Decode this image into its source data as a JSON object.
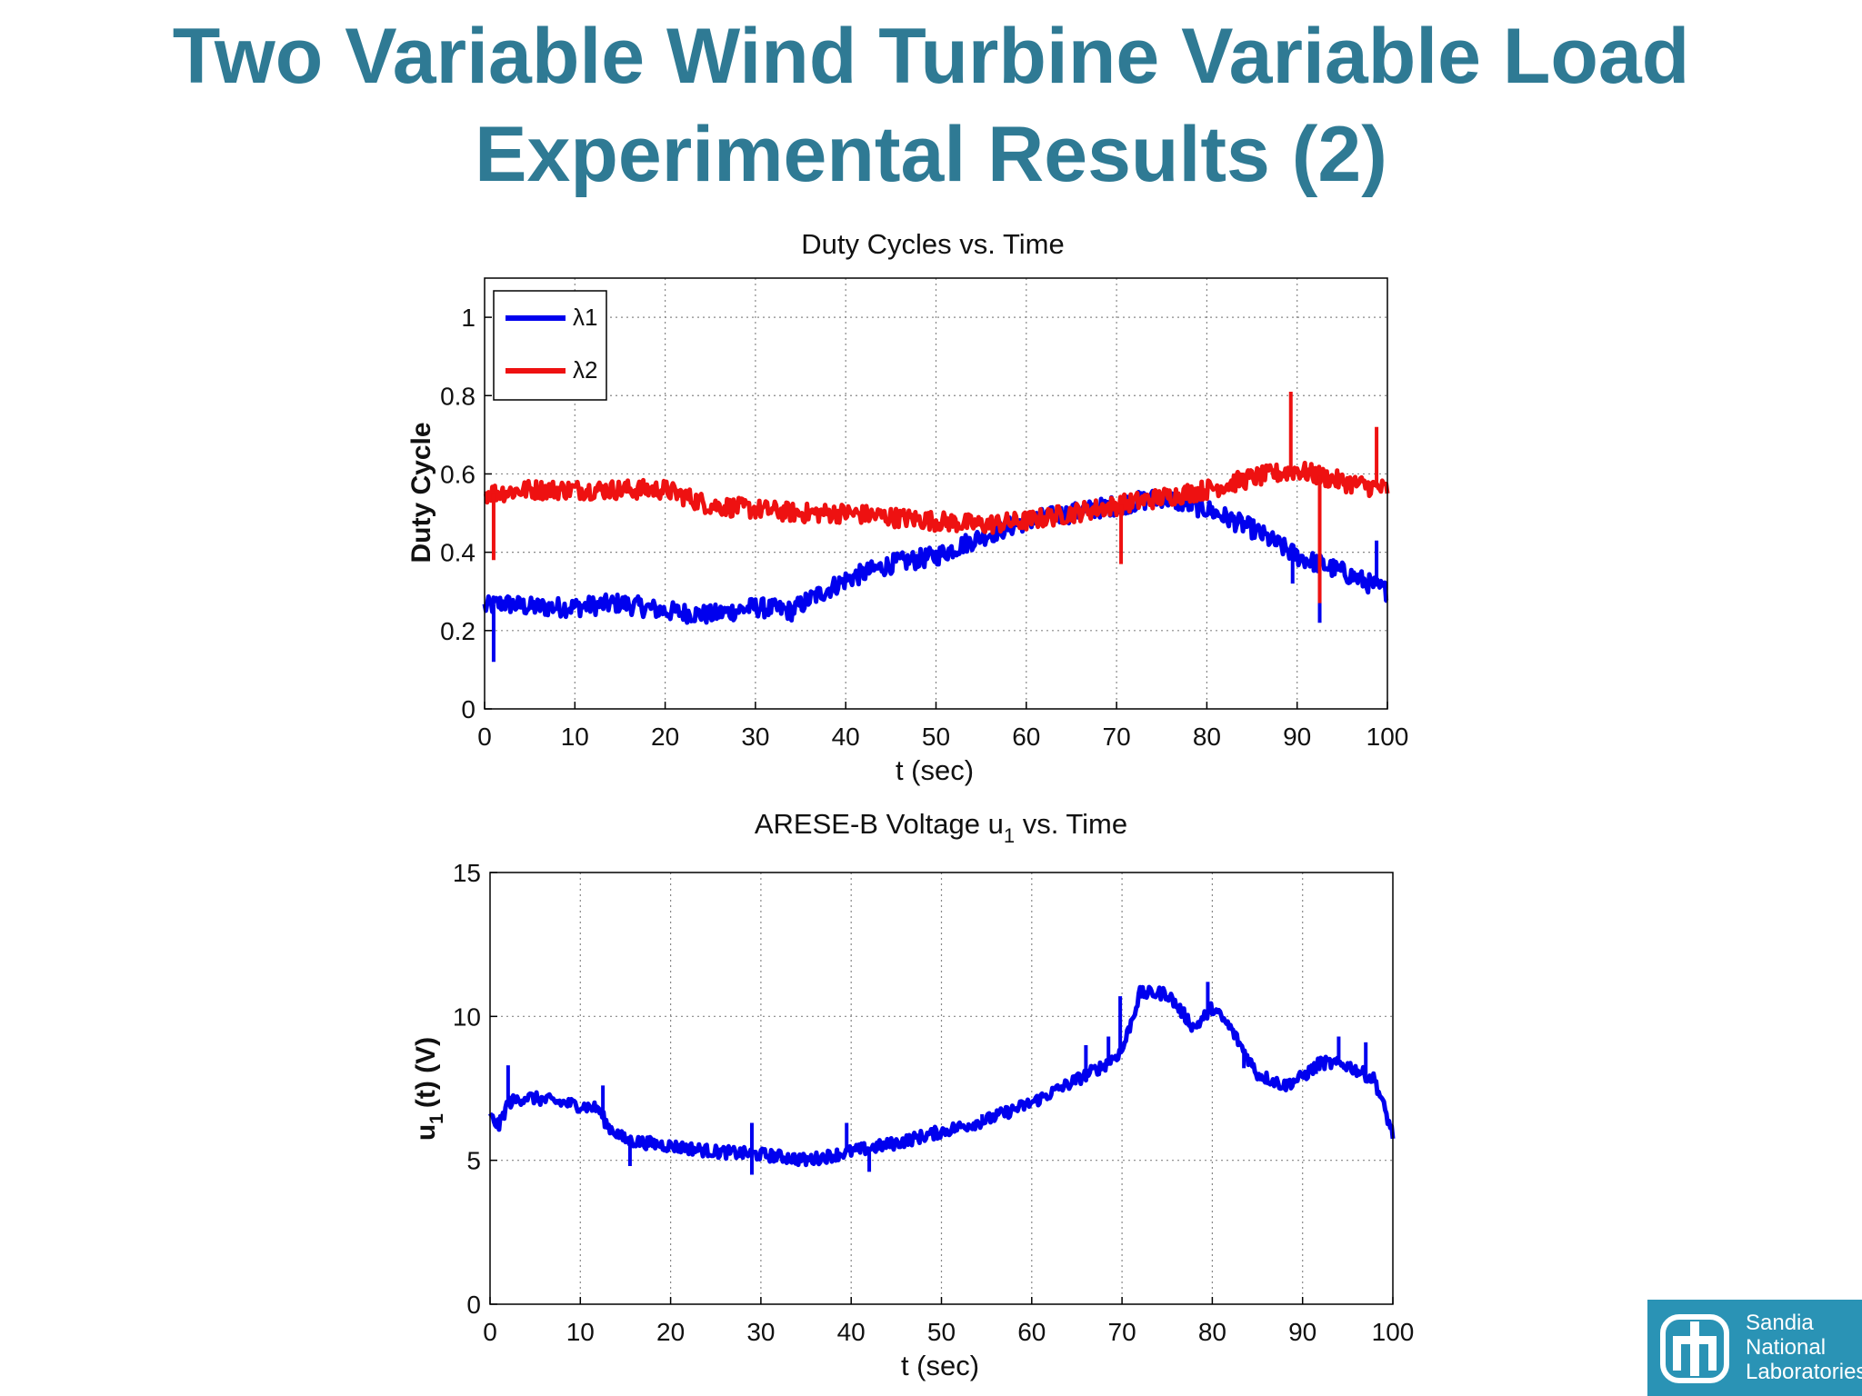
{
  "slide": {
    "title_line1": "Two Variable Wind Turbine Variable Load",
    "title_line2": "Experimental Results (2)"
  },
  "logo": {
    "line1": "Sandia",
    "line2": "National",
    "line3": "Laboratories",
    "icon": "sandia-thunderbird-icon",
    "color": "#2a93b5"
  },
  "colors": {
    "title": "#2f7a94",
    "lambda1": "#0000ee",
    "lambda2": "#ee1111"
  },
  "chart_data": [
    {
      "type": "line",
      "title": "Duty Cycles vs. Time",
      "xlabel": "t (sec)",
      "ylabel": "Duty Cycle",
      "xlim": [
        0,
        100
      ],
      "ylim": [
        0,
        1.1
      ],
      "xticks": [
        0,
        10,
        20,
        30,
        40,
        50,
        60,
        70,
        80,
        90,
        100
      ],
      "yticks": [
        0,
        0.2,
        0.4,
        0.6,
        0.8,
        1
      ],
      "ytick_labels": [
        "0",
        "0.2",
        "0.4",
        "0.6",
        "0.8",
        "1"
      ],
      "grid": true,
      "legend_position": "top-left",
      "series": [
        {
          "name": "λ1",
          "color": "#0000ee",
          "x": [
            0,
            2,
            5,
            10,
            15,
            20,
            25,
            30,
            34,
            36,
            40,
            45,
            50,
            55,
            60,
            65,
            70,
            75,
            80,
            85,
            90,
            95,
            100
          ],
          "y": [
            0.26,
            0.27,
            0.26,
            0.26,
            0.27,
            0.25,
            0.24,
            0.26,
            0.25,
            0.28,
            0.33,
            0.37,
            0.39,
            0.44,
            0.48,
            0.5,
            0.52,
            0.54,
            0.51,
            0.46,
            0.39,
            0.35,
            0.3
          ],
          "spikes": [
            [
              1,
              0.12
            ],
            [
              89.5,
              0.32
            ],
            [
              92.5,
              0.22
            ],
            [
              98.8,
              0.43
            ]
          ]
        },
        {
          "name": "λ2",
          "color": "#ee1111",
          "x": [
            0,
            5,
            10,
            15,
            20,
            25,
            30,
            35,
            40,
            45,
            50,
            55,
            60,
            65,
            70,
            75,
            80,
            85,
            90,
            95,
            100
          ],
          "y": [
            0.55,
            0.56,
            0.56,
            0.56,
            0.56,
            0.52,
            0.51,
            0.5,
            0.5,
            0.49,
            0.48,
            0.47,
            0.48,
            0.5,
            0.52,
            0.54,
            0.56,
            0.59,
            0.61,
            0.58,
            0.56
          ],
          "spikes": [
            [
              1,
              0.38
            ],
            [
              70.5,
              0.37
            ],
            [
              89.3,
              0.81
            ],
            [
              92.5,
              0.27
            ],
            [
              98.8,
              0.72
            ]
          ]
        }
      ]
    },
    {
      "type": "line",
      "title_prefix": "ARESE-B Voltage u",
      "title_subscript": "1",
      "title_suffix": " vs. Time",
      "xlabel": "t (sec)",
      "ylabel_prefix": "u",
      "ylabel_subscript": "1",
      "ylabel_suffix": "(t) (V)",
      "xlim": [
        0,
        100
      ],
      "ylim": [
        0,
        15
      ],
      "xticks": [
        0,
        10,
        20,
        30,
        40,
        50,
        60,
        70,
        80,
        90,
        100
      ],
      "yticks": [
        0,
        5,
        10,
        15
      ],
      "grid": true,
      "series": [
        {
          "color": "#0000ee",
          "x": [
            0,
            1,
            2,
            4,
            8,
            12,
            13,
            15,
            20,
            25,
            30,
            33,
            35,
            40,
            45,
            50,
            55,
            60,
            65,
            68,
            70,
            72,
            75,
            78,
            80,
            82,
            85,
            88,
            90,
            92,
            95,
            98,
            100
          ],
          "y": [
            6.5,
            6.2,
            7.0,
            7.2,
            7.0,
            6.8,
            6.2,
            5.7,
            5.5,
            5.3,
            5.2,
            5.1,
            5.0,
            5.3,
            5.6,
            6.0,
            6.4,
            7.0,
            7.8,
            8.3,
            8.8,
            10.8,
            10.8,
            9.6,
            10.3,
            9.6,
            8.0,
            7.6,
            7.9,
            8.4,
            8.3,
            7.8,
            5.9
          ],
          "spikes": [
            [
              2,
              8.3
            ],
            [
              12.5,
              7.6
            ],
            [
              15.5,
              4.8
            ],
            [
              29,
              4.5
            ],
            [
              29,
              6.3
            ],
            [
              39.5,
              6.3
            ],
            [
              42,
              4.6
            ],
            [
              54.5,
              6.6
            ],
            [
              66,
              9.0
            ],
            [
              68.5,
              9.3
            ],
            [
              69.8,
              10.7
            ],
            [
              79.5,
              11.2
            ],
            [
              83.5,
              8.2
            ],
            [
              91.5,
              8.0
            ],
            [
              94,
              9.3
            ],
            [
              97,
              9.1
            ]
          ]
        }
      ]
    }
  ]
}
